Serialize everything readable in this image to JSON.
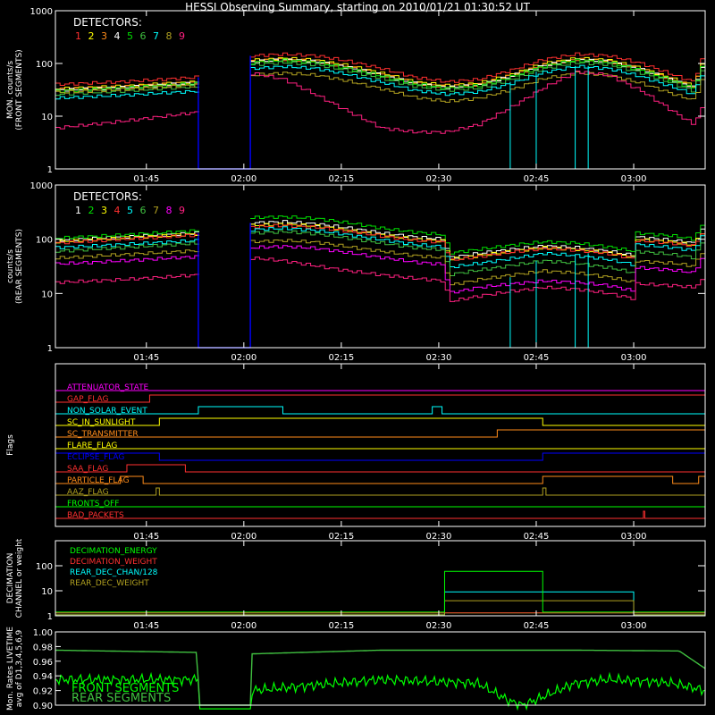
{
  "title": "HESSI Observing Summary, starting on 2010/01/21 01:30:52 UT",
  "detectors_title": "DETECTORS:",
  "colors": {
    "white": "#ffffff",
    "magenta": "#ff00ff",
    "red": "#ff3030",
    "orange": "#ff8c1a",
    "yellow": "#ffff00",
    "green": "#00e000",
    "darkgreen": "#40c040",
    "cyan": "#00ffff",
    "blue": "#0000ff",
    "pink": "#ff2080",
    "olive": "#b0a020",
    "brightgreen": "#00ff00"
  },
  "chart_data": [
    {
      "id": "front",
      "type": "line",
      "ylabel_lines": [
        "MON. counts/s",
        "(FRONT SEGMENTS)"
      ],
      "ylim": [
        1,
        1000
      ],
      "log": true,
      "yticks": [
        "1",
        "10",
        "100",
        "1000"
      ],
      "xlim_min": [
        0,
        100
      ],
      "xticks": [
        "01:45",
        "02:00",
        "02:15",
        "02:30",
        "02:45",
        "03:00"
      ],
      "xtick_min": [
        14,
        29,
        44,
        59,
        74,
        89
      ],
      "legend": {
        "title": "DETECTORS:",
        "labels": [
          "1",
          "2",
          "3",
          "4",
          "5",
          "6",
          "7",
          "8",
          "9"
        ]
      },
      "gap_min": [
        22,
        30
      ],
      "x": [
        0,
        10,
        21.9,
        30.1,
        35,
        40,
        45,
        50,
        55,
        60,
        65,
        70,
        75,
        80,
        85,
        90,
        95,
        98,
        100
      ],
      "series": [
        {
          "name": "1",
          "color": "red",
          "values": [
            40,
            45,
            55,
            140,
            150,
            140,
            110,
            80,
            55,
            45,
            50,
            75,
            120,
            150,
            140,
            100,
            60,
            45,
            200
          ]
        },
        {
          "name": "2",
          "color": "yellow",
          "values": [
            33,
            37,
            45,
            115,
            125,
            115,
            90,
            65,
            45,
            38,
            42,
            62,
            100,
            125,
            115,
            80,
            50,
            37,
            160
          ]
        },
        {
          "name": "3",
          "color": "orange",
          "values": [
            32,
            36,
            44,
            110,
            120,
            110,
            85,
            62,
            43,
            36,
            40,
            60,
            95,
            120,
            110,
            78,
            48,
            36,
            150
          ]
        },
        {
          "name": "4",
          "color": "white",
          "values": [
            31,
            35,
            43,
            108,
            118,
            108,
            83,
            60,
            42,
            35,
            39,
            58,
            92,
            118,
            108,
            76,
            47,
            35,
            140
          ]
        },
        {
          "name": "5",
          "color": "green",
          "values": [
            30,
            34,
            42,
            105,
            115,
            105,
            80,
            58,
            41,
            34,
            38,
            56,
            90,
            115,
            105,
            74,
            46,
            34,
            135
          ]
        },
        {
          "name": "6",
          "color": "darkgreen",
          "values": [
            26,
            30,
            37,
            95,
            104,
            95,
            72,
            52,
            37,
            31,
            34,
            50,
            80,
            104,
            95,
            66,
            41,
            30,
            120
          ]
        },
        {
          "name": "7",
          "color": "cyan",
          "values": [
            22,
            25,
            30,
            80,
            88,
            80,
            61,
            44,
            31,
            26,
            29,
            42,
            68,
            88,
            80,
            56,
            35,
            26,
            100
          ]
        },
        {
          "name": "8",
          "color": "olive",
          "values": [
            28,
            32,
            39,
            60,
            66,
            60,
            46,
            33,
            23,
            19,
            22,
            32,
            52,
            66,
            60,
            42,
            26,
            20,
            80
          ]
        },
        {
          "name": "9",
          "color": "pink",
          "values": [
            6,
            8,
            12,
            65,
            50,
            25,
            12,
            6,
            5,
            5,
            7,
            15,
            35,
            70,
            60,
            30,
            12,
            7,
            20
          ]
        }
      ]
    },
    {
      "id": "rear",
      "type": "line",
      "ylabel_lines": [
        "counts/s",
        "(REAR SEGMENTS)"
      ],
      "ylim": [
        1,
        1000
      ],
      "log": true,
      "yticks": [
        "1",
        "10",
        "100",
        "1000"
      ],
      "xlim_min": [
        0,
        100
      ],
      "xticks": [
        "01:45",
        "02:00",
        "02:15",
        "02:30",
        "02:45",
        "03:00"
      ],
      "xtick_min": [
        14,
        29,
        44,
        59,
        74,
        89
      ],
      "legend": {
        "title": "DETECTORS:",
        "labels": [
          "1",
          "2",
          "3",
          "4",
          "5",
          "6",
          "7",
          "8",
          "9"
        ]
      },
      "gap_min": [
        22,
        30
      ],
      "x": [
        0,
        10,
        21.9,
        30.1,
        35,
        40,
        45,
        50,
        55,
        59.9,
        60.1,
        65,
        70,
        75,
        80,
        85,
        88.9,
        89.1,
        95,
        98,
        100
      ],
      "series": [
        {
          "name": "1",
          "color": "white",
          "values": [
            95,
            110,
            130,
            200,
            210,
            190,
            160,
            130,
            110,
            100,
            45,
            55,
            65,
            75,
            70,
            60,
            50,
            110,
            95,
            85,
            200
          ]
        },
        {
          "name": "2",
          "color": "green",
          "values": [
            105,
            120,
            145,
            250,
            260,
            240,
            200,
            160,
            135,
            120,
            55,
            65,
            78,
            90,
            85,
            72,
            60,
            130,
            115,
            100,
            240
          ]
        },
        {
          "name": "3",
          "color": "yellow",
          "values": [
            90,
            105,
            125,
            180,
            190,
            175,
            145,
            120,
            100,
            92,
            42,
            50,
            60,
            70,
            65,
            56,
            46,
            100,
            88,
            78,
            180
          ]
        },
        {
          "name": "4",
          "color": "red",
          "values": [
            85,
            100,
            120,
            170,
            180,
            165,
            140,
            115,
            96,
            88,
            40,
            48,
            58,
            68,
            63,
            54,
            44,
            95,
            84,
            75,
            170
          ]
        },
        {
          "name": "5",
          "color": "cyan",
          "values": [
            70,
            80,
            95,
            150,
            160,
            145,
            120,
            98,
            80,
            72,
            30,
            36,
            44,
            55,
            50,
            42,
            34,
            80,
            70,
            62,
            150
          ]
        },
        {
          "name": "6",
          "color": "darkgreen",
          "values": [
            60,
            70,
            85,
            130,
            138,
            126,
            104,
            85,
            70,
            63,
            22,
            27,
            33,
            40,
            36,
            30,
            24,
            60,
            52,
            46,
            120
          ]
        },
        {
          "name": "7",
          "color": "olive",
          "values": [
            45,
            52,
            62,
            90,
            95,
            88,
            72,
            60,
            50,
            45,
            14,
            18,
            22,
            26,
            24,
            20,
            16,
            40,
            36,
            32,
            80
          ]
        },
        {
          "name": "8",
          "color": "magenta",
          "values": [
            35,
            40,
            48,
            70,
            74,
            68,
            56,
            46,
            38,
            34,
            10,
            13,
            15,
            17,
            16,
            14,
            11,
            30,
            27,
            24,
            60
          ]
        },
        {
          "name": "9",
          "color": "pink",
          "values": [
            16,
            18,
            22,
            45,
            40,
            32,
            26,
            22,
            19,
            17,
            7,
            9,
            11,
            13,
            12,
            10,
            8,
            15,
            14,
            13,
            20
          ]
        }
      ]
    },
    {
      "id": "flags",
      "type": "table",
      "ylabel_lines": [
        "Flags"
      ],
      "xlim_min": [
        0,
        100
      ],
      "xticks": [
        "01:45",
        "02:00",
        "02:15",
        "02:30",
        "02:45",
        "03:00"
      ],
      "xtick_min": [
        14,
        29,
        44,
        59,
        74,
        89
      ],
      "flags": [
        {
          "name": "ATTENUATOR_STATE",
          "color": "magenta",
          "high": []
        },
        {
          "name": "GAP_FLAG",
          "color": "red",
          "high": [
            [
              14.5,
              100
            ]
          ]
        },
        {
          "name": "NON_SOLAR_EVENT",
          "color": "cyan",
          "high": [
            [
              22,
              35
            ],
            [
              58,
              59.5
            ]
          ]
        },
        {
          "name": "SC_IN_SUNLIGHT",
          "color": "yellow",
          "high": [
            [
              16,
              75
            ]
          ]
        },
        {
          "name": "SC_TRANSMITTER",
          "color": "orange",
          "high": [
            [
              68,
              100
            ]
          ]
        },
        {
          "name": "FLARE_FLAG",
          "color": "yellow",
          "high": []
        },
        {
          "name": "ECLIPSE_FLAG",
          "color": "blue",
          "high": [
            [
              0,
              16
            ],
            [
              75,
              100
            ]
          ]
        },
        {
          "name": "SAA_FLAG",
          "color": "red",
          "high": [
            [
              11,
              20
            ]
          ]
        },
        {
          "name": "PARTICLE_FLAG",
          "color": "orange",
          "high": [
            [
              10,
              13.5
            ],
            [
              75,
              95
            ],
            [
              99,
              100
            ]
          ]
        },
        {
          "name": "AAZ_FLAG",
          "color": "olive",
          "high": [
            [
              15.5,
              16
            ],
            [
              75,
              75.5
            ]
          ]
        },
        {
          "name": "FRONTS_OFF",
          "color": "brightgreen",
          "high": []
        },
        {
          "name": "BAD_PACKETS",
          "color": "red",
          "high": [
            [
              90.5,
              90.7
            ]
          ]
        }
      ]
    },
    {
      "id": "decimation",
      "type": "line",
      "ylabel_lines": [
        "DECIMATION",
        "CHANNEL or weight"
      ],
      "ylim": [
        1,
        1000
      ],
      "log": true,
      "yticks": [
        "1",
        "10",
        "100"
      ],
      "xlim_min": [
        0,
        100
      ],
      "xticks": [
        "01:45",
        "02:00",
        "02:15",
        "02:30",
        "02:45",
        "03:00"
      ],
      "xtick_min": [
        14,
        29,
        44,
        59,
        74,
        89
      ],
      "series": [
        {
          "name": "DECIMATION_ENERGY",
          "color": "brightgreen",
          "steps": [
            [
              0,
              1.3
            ],
            [
              75,
              1.3
            ],
            [
              100,
              1.3
            ]
          ]
        },
        {
          "name": "DECIMATION_WEIGHT",
          "color": "red",
          "steps": [
            [
              0,
              1.3
            ],
            [
              100,
              1.3
            ]
          ]
        },
        {
          "name": "REAR_DEC_CHAN/128",
          "color": "cyan",
          "steps": [
            [
              0,
              1.1
            ],
            [
              59.9,
              9
            ],
            [
              89,
              1.1
            ],
            [
              100,
              1.1
            ]
          ]
        },
        {
          "name": "REAR_DEC_WEIGHT",
          "color": "olive",
          "steps": [
            [
              0,
              1.1
            ],
            [
              59.9,
              4
            ],
            [
              89,
              1.1
            ],
            [
              100,
              1.1
            ]
          ]
        }
      ],
      "extra_green_box": [
        [
          0,
          1.4
        ],
        [
          59.9,
          60
        ],
        [
          75,
          1.4
        ]
      ]
    },
    {
      "id": "livetime",
      "type": "line",
      "ylabel_lines": [
        "Mon. Rates LIVETIME",
        "avg of D1,3,4,5,6,9"
      ],
      "ylim": [
        0.9,
        1.0
      ],
      "log": false,
      "yticks": [
        "0.90",
        "0.92",
        "0.94",
        "0.96",
        "0.98",
        "1.00"
      ],
      "xlim_min": [
        0,
        100
      ],
      "series": [
        {
          "name": "FRONT SEGMENTS",
          "color": "brightgreen",
          "x": [
            0,
            22,
            30.2,
            50,
            65,
            70,
            72,
            76,
            80,
            85,
            90,
            95,
            100
          ],
          "values": [
            0.935,
            0.935,
            0.92,
            0.935,
            0.93,
            0.905,
            0.9,
            0.915,
            0.93,
            0.935,
            0.933,
            0.93,
            0.92
          ]
        },
        {
          "name": "REAR SEGMENTS",
          "color": "darkgreen",
          "x": [
            0,
            21.9,
            22,
            30,
            30.2,
            50,
            80,
            96,
            100
          ],
          "values": [
            0.975,
            0.972,
            0.9,
            0.9,
            0.97,
            0.975,
            0.975,
            0.974,
            0.95
          ]
        }
      ],
      "legend_labels": [
        "FRONT SEGMENTS",
        "REAR SEGMENTS"
      ]
    }
  ]
}
